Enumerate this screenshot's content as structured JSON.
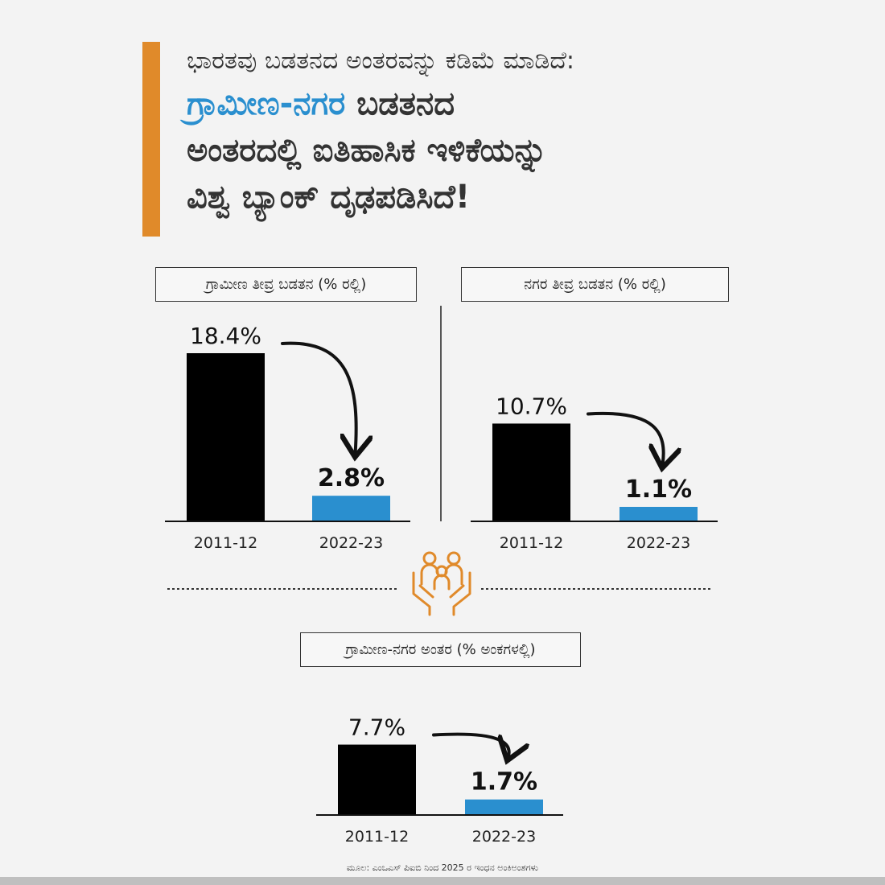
{
  "heading": {
    "subtitle": "ಭಾರತವು ಬಡತನದ ಅಂತರವನ್ನು ಕಡಿಮೆ ಮಾಡಿದೆ:",
    "title_highlight": "ಗ್ರಾಮೀಣ-ನಗರ",
    "title_line1_rest": " ಬಡತನದ",
    "title_line2": "ಅಂತರದಲ್ಲಿ ಐತಿಹಾಸಿಕ ಇಳಿಕೆಯನ್ನು",
    "title_line3": "ವಿಶ್ವ ಬ್ಯಾಂಕ್ ದೃಢಪಡಿಸಿದೆ!"
  },
  "colors": {
    "accent": "#e08a2a",
    "highlight": "#2a8fcf",
    "bar_before": "#000000",
    "bar_after": "#2a8fcf"
  },
  "icons": [
    "family-hands-icon",
    "curved-arrow-icon"
  ],
  "chart_data": [
    {
      "type": "bar",
      "title": "ಗ್ರಾಮೀಣ ತೀವ್ರ ಬಡತನ (% ರಲ್ಲಿ)",
      "categories": [
        "2011-12",
        "2022-23"
      ],
      "values": [
        18.4,
        2.8
      ],
      "value_labels": [
        "18.4%",
        "2.8%"
      ],
      "ylim": [
        0,
        18.4
      ]
    },
    {
      "type": "bar",
      "title": "ನಗರ ತೀವ್ರ ಬಡತನ (% ರಲ್ಲಿ)",
      "categories": [
        "2011-12",
        "2022-23"
      ],
      "values": [
        10.7,
        1.1
      ],
      "value_labels": [
        "10.7%",
        "1.1%"
      ],
      "ylim": [
        0,
        18.4
      ]
    },
    {
      "type": "bar",
      "title": "ಗ್ರಾಮೀಣ-ನಗರ ಅಂತರ (% ಅಂಕಗಳಲ್ಲಿ)",
      "categories": [
        "2011-12",
        "2022-23"
      ],
      "values": [
        7.7,
        1.7
      ],
      "value_labels": [
        "7.7%",
        "1.7%"
      ],
      "ylim": [
        0,
        18.4
      ]
    }
  ],
  "source": "ಮೂಲ: ಎಂಒಎಸ್ ಪಿಐಬಿ ನಿಂದ 2025 ರ ಇಂಧನ ಅಂಕಿಅಂಶಗಳು"
}
